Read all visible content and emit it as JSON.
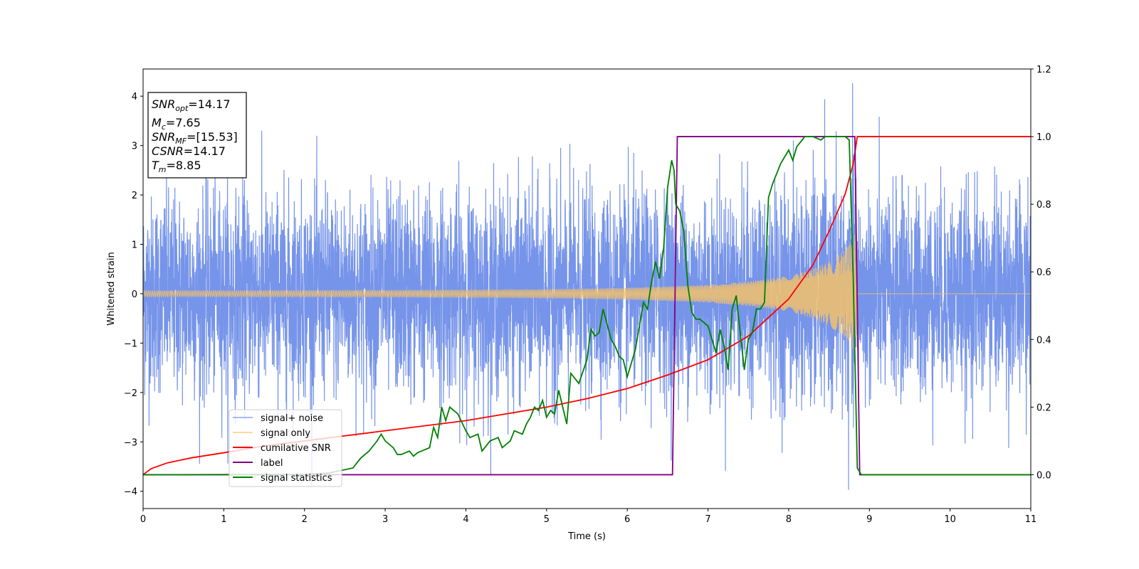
{
  "chart_data": {
    "type": "line",
    "xlabel": "Time (s)",
    "ylabel": "Whitened strain",
    "xlim": [
      0,
      11
    ],
    "ylim": [
      -4.35,
      4.55
    ],
    "y2lim": [
      -0.1,
      1.2
    ],
    "xticks": [
      "0",
      "1",
      "2",
      "3",
      "4",
      "5",
      "6",
      "7",
      "8",
      "9",
      "10",
      "11"
    ],
    "yticks": [
      "−4",
      "−3",
      "−2",
      "−1",
      "0",
      "1",
      "2",
      "3",
      "4"
    ],
    "y2ticks": [
      "0.0",
      "0.2",
      "0.4",
      "0.6",
      "0.8",
      "1.0",
      "1.2"
    ],
    "grid": false,
    "legend_position": "lower-left",
    "info_box": {
      "lines": [
        {
          "sym": "SNR",
          "sub": "opt",
          "val": "=14.17"
        },
        {
          "sym": "M",
          "sub": "c",
          "val": "=7.65"
        },
        {
          "sym": "SNR",
          "sub": "MF",
          "val": "=[15.53]"
        },
        {
          "sym": "CSNR",
          "sub": "",
          "val": "=14.17"
        },
        {
          "sym": "T",
          "sub": "m",
          "val": "=8.85"
        }
      ]
    },
    "merger_time": 8.85,
    "signal_envelope": {
      "x": [
        0,
        1,
        2,
        3,
        4,
        5,
        6,
        7,
        7.5,
        8,
        8.3,
        8.5,
        8.7,
        8.8,
        8.85
      ],
      "amplitude": [
        0.06,
        0.06,
        0.065,
        0.07,
        0.08,
        0.09,
        0.12,
        0.18,
        0.25,
        0.36,
        0.5,
        0.65,
        0.9,
        1.15,
        1.3
      ]
    },
    "noise_std": 1.0,
    "series": [
      {
        "name": "signal+ noise",
        "color": "#6f8ee8",
        "axis": "left",
        "style": "noise"
      },
      {
        "name": "signal only",
        "color": "#f5c26b",
        "axis": "left",
        "style": "chirp"
      },
      {
        "name": "cumilative SNR",
        "color": "#ff0000",
        "axis": "right",
        "x": [
          0,
          0.1,
          0.3,
          0.6,
          1,
          1.5,
          2,
          2.5,
          3,
          3.5,
          4,
          4.5,
          5,
          5.5,
          6,
          6.5,
          7,
          7.5,
          8,
          8.3,
          8.5,
          8.7,
          8.8,
          8.85,
          9,
          11
        ],
        "y": [
          0.0,
          0.018,
          0.035,
          0.05,
          0.065,
          0.085,
          0.1,
          0.115,
          0.13,
          0.145,
          0.16,
          0.18,
          0.2,
          0.225,
          0.255,
          0.295,
          0.34,
          0.41,
          0.52,
          0.62,
          0.72,
          0.83,
          0.92,
          1.0,
          1.0,
          1.0
        ]
      },
      {
        "name": "label",
        "color": "#800080",
        "axis": "right",
        "x": [
          0,
          6.56,
          6.62,
          8.82,
          8.88,
          11
        ],
        "y": [
          0,
          0,
          1,
          1,
          0,
          0
        ]
      },
      {
        "name": "signal statistics",
        "color": "#008000",
        "axis": "right",
        "x": [
          0,
          2.0,
          2.3,
          2.6,
          2.7,
          2.8,
          2.9,
          2.95,
          3.0,
          3.1,
          3.15,
          3.2,
          3.3,
          3.35,
          3.4,
          3.5,
          3.55,
          3.6,
          3.65,
          3.7,
          3.75,
          3.8,
          3.9,
          4.0,
          4.05,
          4.15,
          4.2,
          4.3,
          4.4,
          4.45,
          4.55,
          4.6,
          4.7,
          4.75,
          4.8,
          4.85,
          4.9,
          4.95,
          5.0,
          5.05,
          5.1,
          5.15,
          5.2,
          5.25,
          5.3,
          5.4,
          5.5,
          5.55,
          5.6,
          5.65,
          5.7,
          5.8,
          5.85,
          5.9,
          5.95,
          6.0,
          6.1,
          6.2,
          6.25,
          6.3,
          6.35,
          6.4,
          6.45,
          6.5,
          6.55,
          6.58,
          6.6,
          6.65,
          6.7,
          6.75,
          6.8,
          6.85,
          6.9,
          7.0,
          7.05,
          7.1,
          7.15,
          7.2,
          7.25,
          7.3,
          7.35,
          7.4,
          7.45,
          7.5,
          7.55,
          7.6,
          7.65,
          7.7,
          7.75,
          7.8,
          7.9,
          8.0,
          8.05,
          8.1,
          8.2,
          8.3,
          8.4,
          8.45,
          8.5,
          8.6,
          8.7,
          8.75,
          8.8,
          8.85,
          8.9,
          9.0,
          9.5,
          11
        ],
        "y": [
          0.0,
          0.001,
          0.005,
          0.02,
          0.05,
          0.07,
          0.1,
          0.12,
          0.1,
          0.08,
          0.06,
          0.06,
          0.07,
          0.055,
          0.065,
          0.075,
          0.08,
          0.14,
          0.11,
          0.2,
          0.16,
          0.2,
          0.18,
          0.13,
          0.11,
          0.12,
          0.07,
          0.1,
          0.11,
          0.08,
          0.1,
          0.13,
          0.12,
          0.15,
          0.17,
          0.2,
          0.19,
          0.22,
          0.17,
          0.19,
          0.18,
          0.25,
          0.2,
          0.15,
          0.3,
          0.27,
          0.34,
          0.43,
          0.41,
          0.42,
          0.49,
          0.4,
          0.38,
          0.35,
          0.34,
          0.29,
          0.37,
          0.51,
          0.49,
          0.57,
          0.63,
          0.58,
          0.67,
          0.85,
          0.93,
          0.9,
          0.8,
          0.78,
          0.72,
          0.56,
          0.48,
          0.46,
          0.46,
          0.44,
          0.4,
          0.36,
          0.43,
          0.38,
          0.31,
          0.49,
          0.53,
          0.42,
          0.31,
          0.4,
          0.42,
          0.49,
          0.49,
          0.51,
          0.82,
          0.86,
          0.92,
          0.96,
          0.93,
          0.97,
          1.0,
          1.0,
          0.99,
          1.0,
          1.0,
          1.0,
          1.0,
          0.99,
          0.58,
          0.02,
          0.0,
          0.0,
          0.0,
          0.0
        ]
      }
    ]
  }
}
